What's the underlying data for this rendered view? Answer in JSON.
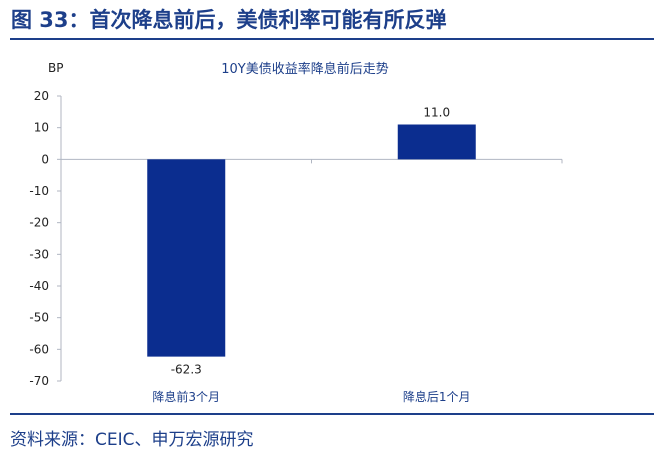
{
  "figure_title": "图 33：首次降息前后，美债利率可能有所反弹",
  "source": "资料来源：CEIC、申万宏源研究",
  "colors": {
    "brand": "#1d3f8a",
    "bar": "#0b2d8f",
    "axis": "#b0b6c2"
  },
  "chart_data": {
    "type": "bar",
    "title": "10Y美债收益率降息前后走势",
    "ylabel": "BP",
    "xlabel": "",
    "categories": [
      "降息前3个月",
      "降息后1个月"
    ],
    "values": [
      -62.3,
      11.0
    ],
    "value_labels": [
      "-62.3",
      "11.0"
    ],
    "ylim": [
      -70,
      20
    ],
    "yticks": [
      20,
      10,
      0,
      -10,
      -20,
      -30,
      -40,
      -50,
      -60,
      -70
    ],
    "grid": false,
    "legend": "none"
  }
}
